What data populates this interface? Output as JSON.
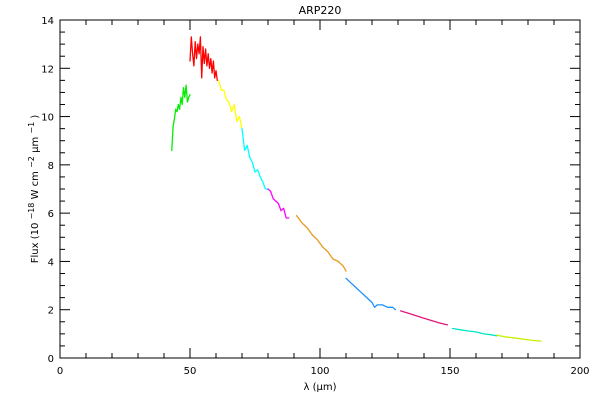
{
  "chart_data": {
    "type": "line",
    "title": "ARP220",
    "xlabel": "λ (μm)",
    "ylabel_parts": {
      "prefix": "Flux (10",
      "exp1": "−18",
      "middle": " W cm",
      "exp2": "−2",
      "mu": "μm",
      "exp3": "−1",
      "suffix": ")"
    },
    "xlim": [
      0,
      200
    ],
    "ylim": [
      0,
      14
    ],
    "x_ticks": [
      0,
      50,
      100,
      150,
      200
    ],
    "y_ticks": [
      0,
      2,
      4,
      6,
      8,
      10,
      12,
      14
    ],
    "x_minor_step": 10,
    "y_minor_step": 0.5,
    "grid": false,
    "legend": "none",
    "series": [
      {
        "color": "#00ee00",
        "x": [
          43.0,
          43.5,
          44.0,
          44.5,
          45.0,
          45.5,
          46.0,
          46.5,
          47.0,
          47.5,
          48.0,
          48.5,
          49.0,
          49.5,
          50.0
        ],
        "y": [
          8.6,
          9.6,
          9.9,
          10.3,
          10.2,
          10.5,
          10.3,
          10.8,
          10.5,
          11.2,
          10.8,
          11.3,
          10.6,
          10.8,
          10.9
        ]
      },
      {
        "color": "#ff0000",
        "x": [
          50.0,
          50.5,
          51.0,
          51.5,
          52.0,
          52.5,
          53.0,
          53.5,
          54.0,
          54.5,
          55.0,
          55.5,
          56.0,
          56.5,
          57.0,
          57.5,
          58.0,
          58.5,
          59.0,
          59.5,
          60.0,
          60.5
        ],
        "y": [
          12.3,
          13.3,
          12.6,
          12.1,
          13.1,
          12.4,
          13.0,
          12.6,
          13.3,
          11.6,
          12.9,
          12.2,
          12.8,
          12.1,
          12.6,
          12.0,
          12.4,
          11.8,
          12.3,
          11.6,
          11.9,
          11.5
        ]
      },
      {
        "color": "#ffff00",
        "x": [
          61.0,
          62.0,
          63.0,
          64.0,
          65.0,
          66.0,
          67.0,
          68.0,
          69.0,
          70.0
        ],
        "y": [
          11.5,
          11.1,
          11.1,
          10.7,
          10.6,
          10.2,
          10.5,
          9.8,
          10.0,
          9.5
        ]
      },
      {
        "color": "#00ffff",
        "x": [
          70.0,
          71.0,
          72.0,
          73.0,
          74.0,
          75.0,
          76.0,
          77.0,
          78.0,
          79.0,
          80.0
        ],
        "y": [
          9.5,
          8.6,
          8.8,
          8.3,
          8.1,
          7.7,
          7.8,
          7.5,
          7.3,
          7.0,
          7.0
        ]
      },
      {
        "color": "#ff00ff",
        "x": [
          80.0,
          81.0,
          82.0,
          83.0,
          84.0,
          85.0,
          86.0,
          87.0,
          88.0
        ],
        "y": [
          7.0,
          6.9,
          6.6,
          6.5,
          6.4,
          6.1,
          6.2,
          5.8,
          5.8
        ]
      },
      {
        "color": "#e69a1c",
        "x": [
          91.0,
          93.0,
          95.0,
          97.0,
          99.0,
          101.0,
          103.0,
          105.0,
          107.0,
          109.0,
          110.0
        ],
        "y": [
          5.9,
          5.6,
          5.4,
          5.1,
          4.9,
          4.6,
          4.4,
          4.1,
          4.0,
          3.8,
          3.6
        ]
      },
      {
        "color": "#1e90ff",
        "x": [
          110.0,
          112.0,
          114.0,
          116.0,
          118.0,
          120.0,
          121.0,
          122.0,
          124.0,
          126.0,
          128.0,
          129.0
        ],
        "y": [
          3.3,
          3.1,
          2.9,
          2.7,
          2.5,
          2.3,
          2.1,
          2.2,
          2.2,
          2.1,
          2.1,
          2.0
        ]
      },
      {
        "color": "#e0177c",
        "x": [
          131.0,
          134.0,
          137.0,
          140.0,
          143.0,
          146.0,
          149.0
        ],
        "y": [
          1.95,
          1.85,
          1.75,
          1.65,
          1.55,
          1.45,
          1.37
        ]
      },
      {
        "color": "#00e6c8",
        "x": [
          151.0,
          154.0,
          157.0,
          160.0,
          163.0,
          166.0,
          168.0
        ],
        "y": [
          1.22,
          1.17,
          1.12,
          1.08,
          1.0,
          0.96,
          0.92
        ]
      },
      {
        "color": "#c8f000",
        "x": [
          168.0,
          171.0,
          174.0,
          177.0,
          180.0,
          183.0,
          185.0
        ],
        "y": [
          0.95,
          0.88,
          0.84,
          0.8,
          0.75,
          0.72,
          0.7
        ]
      }
    ]
  }
}
